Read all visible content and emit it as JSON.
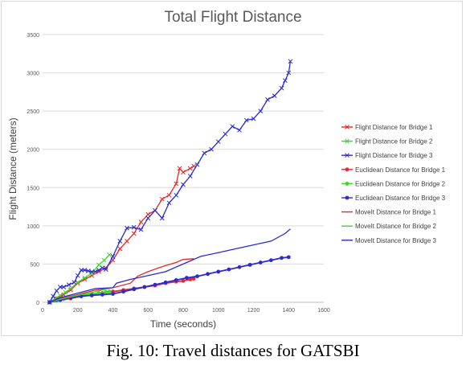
{
  "chart_data": {
    "type": "line",
    "title": "Total Flight Distance",
    "xlabel": "Time (seconds)",
    "ylabel": "Flight Distance (meters)",
    "xlim": [
      0,
      1600
    ],
    "ylim": [
      0,
      3500
    ],
    "xticks": [
      0,
      200,
      400,
      600,
      800,
      1000,
      1200,
      1400,
      1600
    ],
    "yticks": [
      0,
      500,
      1000,
      1500,
      2000,
      2500,
      3000,
      3500
    ],
    "grid": "horizontal",
    "legend_position": "right",
    "series": [
      {
        "name": "Flight Distance for Bridge 1",
        "color": "#e8262c",
        "marker": "x",
        "x": [
          40,
          80,
          120,
          160,
          200,
          240,
          280,
          320,
          360,
          400,
          440,
          480,
          520,
          560,
          600,
          640,
          680,
          720,
          760,
          780,
          800,
          840,
          860
        ],
        "y": [
          0,
          50,
          100,
          160,
          250,
          300,
          350,
          400,
          450,
          550,
          700,
          800,
          900,
          1050,
          1150,
          1200,
          1350,
          1400,
          1550,
          1750,
          1700,
          1750,
          1780
        ]
      },
      {
        "name": "Flight Distance for Bridge 2",
        "color": "#3cd629",
        "marker": "x",
        "x": [
          40,
          70,
          100,
          130,
          160,
          200,
          240,
          280,
          320,
          350,
          380
        ],
        "y": [
          0,
          50,
          90,
          130,
          180,
          260,
          320,
          380,
          490,
          550,
          620
        ]
      },
      {
        "name": "Flight Distance for Bridge 3",
        "color": "#2a2ad6",
        "marker": "x",
        "x": [
          40,
          60,
          80,
          100,
          120,
          150,
          180,
          200,
          220,
          240,
          260,
          280,
          300,
          320,
          340,
          360,
          400,
          440,
          480,
          520,
          560,
          600,
          640,
          680,
          720,
          760,
          800,
          840,
          880,
          920,
          960,
          1000,
          1040,
          1080,
          1120,
          1160,
          1200,
          1240,
          1280,
          1320,
          1360,
          1380,
          1400,
          1410
        ],
        "y": [
          0,
          80,
          150,
          200,
          200,
          230,
          260,
          350,
          420,
          420,
          410,
          400,
          400,
          420,
          450,
          430,
          600,
          800,
          970,
          980,
          950,
          1100,
          1200,
          1100,
          1300,
          1400,
          1540,
          1650,
          1800,
          1950,
          2000,
          2100,
          2200,
          2300,
          2250,
          2380,
          2400,
          2500,
          2650,
          2700,
          2800,
          2900,
          3000,
          3150
        ]
      },
      {
        "name": "Euclidean Distance for Bridge 1",
        "color": "#e8262c",
        "marker": "o",
        "x": [
          40,
          100,
          160,
          220,
          280,
          340,
          400,
          460,
          520,
          580,
          640,
          700,
          760,
          800,
          840,
          860
        ],
        "y": [
          0,
          30,
          50,
          80,
          100,
          120,
          140,
          160,
          180,
          200,
          220,
          250,
          270,
          280,
          300,
          310
        ]
      },
      {
        "name": "Euclidean Distance for Bridge 2",
        "color": "#3cd629",
        "marker": "o",
        "x": [
          40,
          80,
          120,
          160,
          200,
          240,
          280,
          320,
          360,
          380
        ],
        "y": [
          0,
          20,
          40,
          60,
          80,
          95,
          110,
          120,
          135,
          140
        ]
      },
      {
        "name": "Euclidean Distance for Bridge 3",
        "color": "#2a2ad6",
        "marker": "o",
        "x": [
          40,
          100,
          160,
          220,
          280,
          340,
          400,
          460,
          520,
          580,
          640,
          700,
          760,
          820,
          880,
          940,
          1000,
          1060,
          1120,
          1180,
          1240,
          1300,
          1360,
          1400
        ],
        "y": [
          0,
          30,
          60,
          80,
          90,
          100,
          110,
          140,
          170,
          200,
          230,
          260,
          290,
          320,
          340,
          370,
          400,
          430,
          460,
          490,
          520,
          550,
          580,
          590
        ]
      },
      {
        "name": "MoveIt Distance for Bridge 1",
        "color": "#e8262c",
        "marker": "none",
        "x": [
          40,
          100,
          200,
          300,
          400,
          500,
          540,
          600,
          660,
          700,
          760,
          800,
          860
        ],
        "y": [
          0,
          50,
          100,
          160,
          190,
          250,
          340,
          400,
          450,
          480,
          520,
          560,
          570
        ]
      },
      {
        "name": "MoveIt Distance for Bridge 2",
        "color": "#3cd629",
        "marker": "none",
        "x": [
          40,
          100,
          160,
          220,
          280,
          340,
          380
        ],
        "y": [
          0,
          40,
          70,
          100,
          130,
          160,
          180
        ]
      },
      {
        "name": "MoveIt Distance for Bridge 3",
        "color": "#2a2ad6",
        "marker": "none",
        "x": [
          40,
          100,
          200,
          300,
          400,
          420,
          500,
          600,
          700,
          800,
          900,
          1000,
          1100,
          1200,
          1300,
          1380,
          1410
        ],
        "y": [
          0,
          60,
          120,
          180,
          190,
          250,
          300,
          350,
          400,
          500,
          600,
          650,
          700,
          750,
          800,
          900,
          960
        ]
      }
    ]
  },
  "caption": "Fig. 10: Travel distances for GATSBI"
}
